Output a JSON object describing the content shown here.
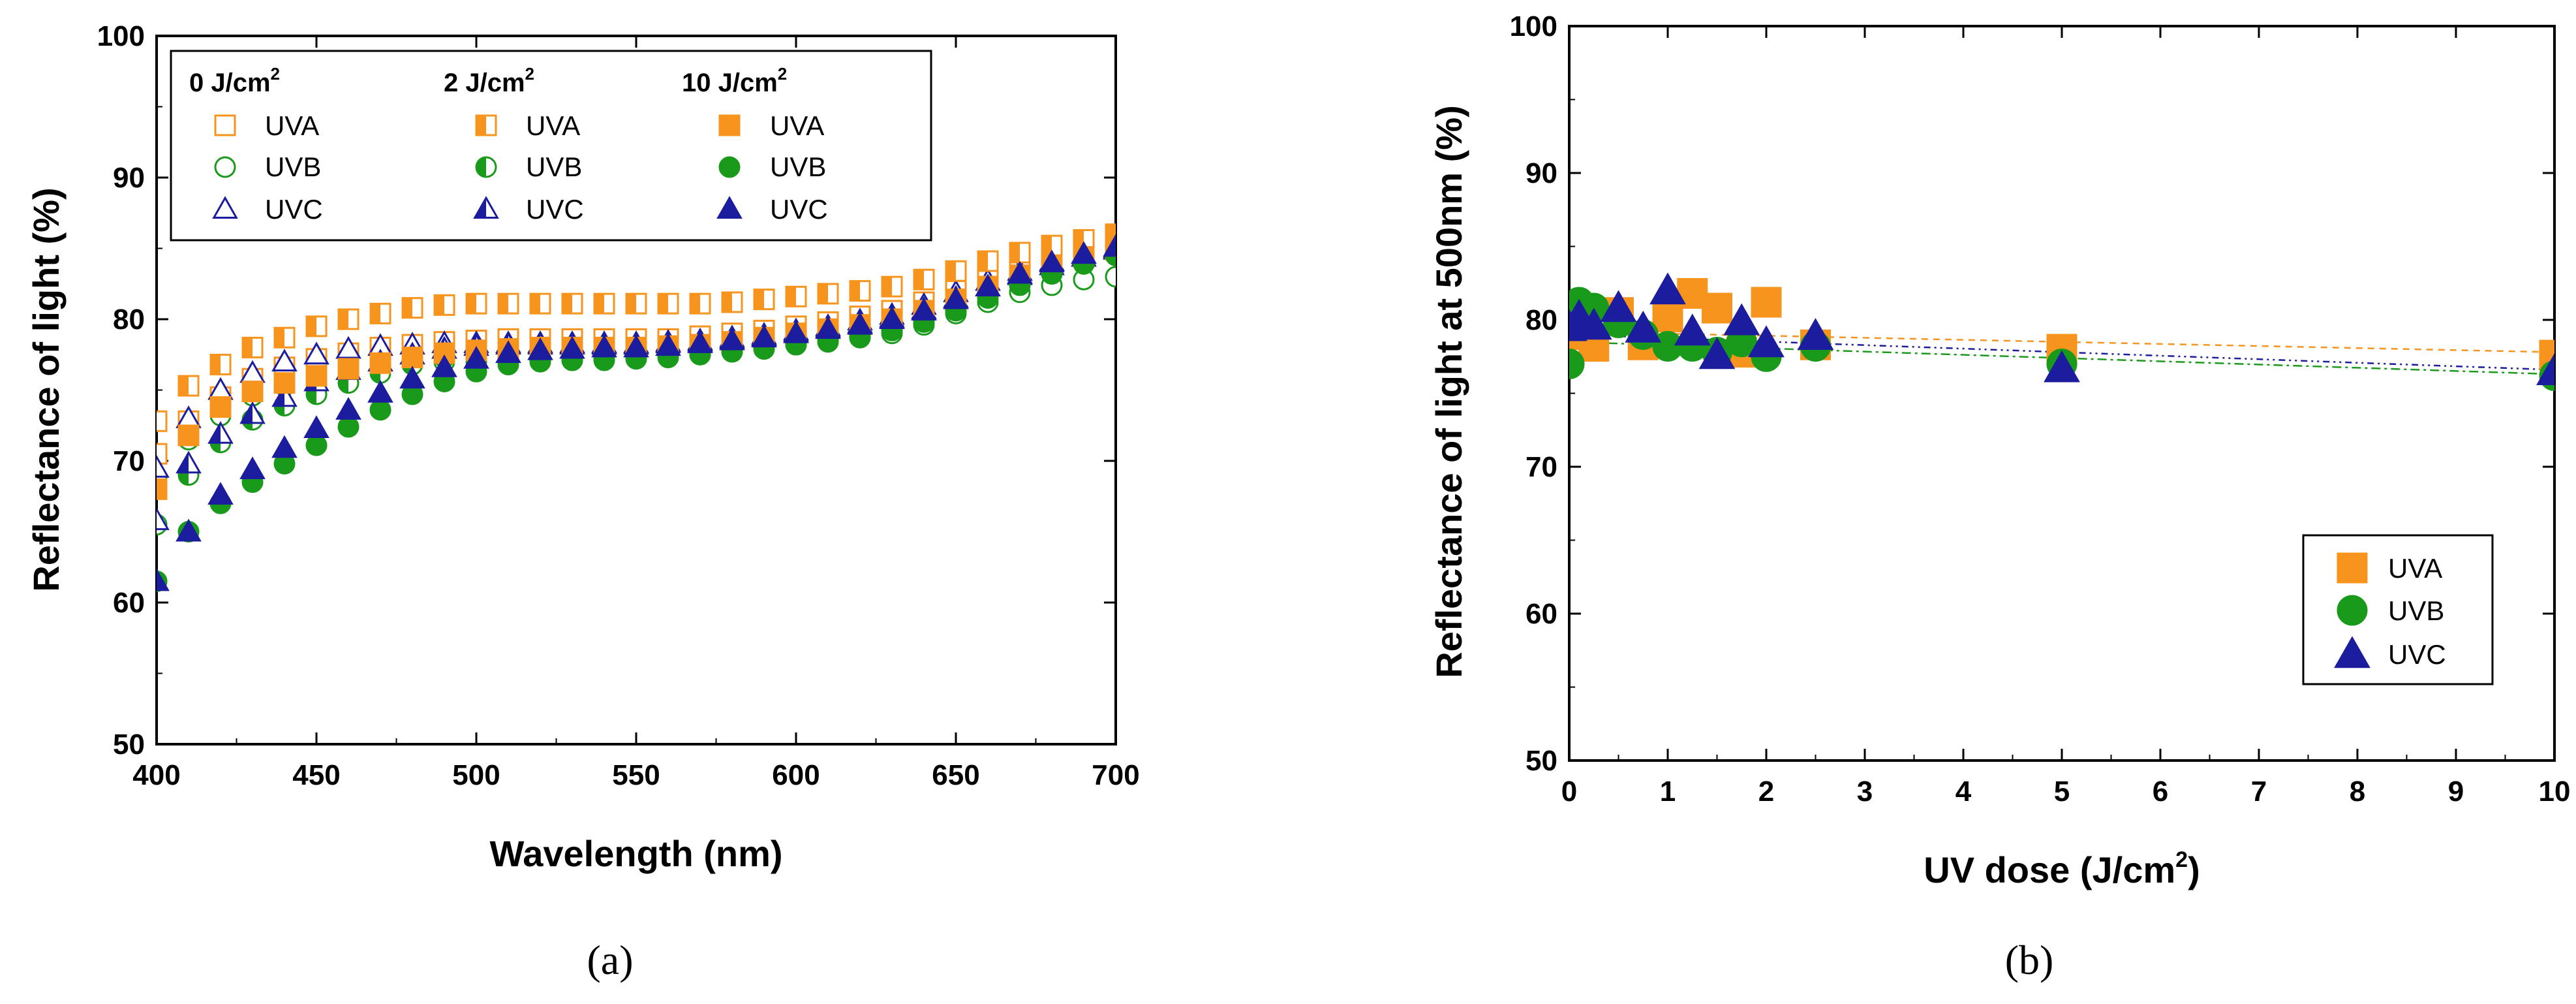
{
  "colors": {
    "UVA": "#f7941d",
    "UVB": "#1a9a1a",
    "UVC": "#1c1c9e",
    "axis": "#000000"
  },
  "chart_data": [
    {
      "type": "scatter",
      "panel_label": "(a)",
      "xlabel": "Wavelength (nm)",
      "ylabel": "Reflectance of light (%)",
      "xlim": [
        400,
        700
      ],
      "ylim": [
        50,
        100
      ],
      "xticks": [
        "400",
        "450",
        "500",
        "550",
        "600",
        "650",
        "700"
      ],
      "yticks": [
        "50",
        "60",
        "70",
        "80",
        "90",
        "100"
      ],
      "legend_position": "top-left",
      "legend_groups": [
        {
          "header": "0 J/cm",
          "sup": "2",
          "entries": [
            "UVA",
            "UVB",
            "UVC"
          ]
        },
        {
          "header": "2 J/cm",
          "sup": "2",
          "entries": [
            "UVA",
            "UVB",
            "UVC"
          ]
        },
        {
          "header": "10 J/cm",
          "sup": "2",
          "entries": [
            "UVA",
            "UVB",
            "UVC"
          ]
        }
      ],
      "x": [
        400,
        410,
        420,
        430,
        440,
        450,
        460,
        470,
        480,
        490,
        500,
        510,
        520,
        530,
        540,
        550,
        560,
        570,
        580,
        590,
        600,
        610,
        620,
        630,
        640,
        650,
        660,
        670,
        680,
        690,
        700
      ],
      "series": [
        {
          "name": "UVA 0 J/cm2",
          "uv": "UVA",
          "fill": "open",
          "values": [
            70.5,
            72.8,
            74.5,
            75.8,
            76.6,
            77.2,
            77.6,
            78.0,
            78.2,
            78.4,
            78.5,
            78.6,
            78.6,
            78.6,
            78.6,
            78.6,
            78.6,
            78.8,
            79.0,
            79.2,
            79.5,
            79.8,
            80.2,
            80.6,
            81.2,
            82.0,
            82.8,
            83.5,
            84.3,
            84.9,
            85.4
          ]
        },
        {
          "name": "UVB 0 J/cm2",
          "uv": "UVB",
          "fill": "open",
          "values": [
            68.8,
            71.5,
            73.2,
            74.6,
            75.3,
            75.8,
            76.3,
            76.6,
            76.8,
            77.0,
            77.0,
            77.1,
            77.1,
            77.1,
            77.1,
            77.2,
            77.3,
            77.5,
            77.7,
            78.0,
            78.2,
            78.4,
            78.7,
            79.0,
            79.6,
            80.4,
            81.2,
            81.9,
            82.4,
            82.8,
            83.0
          ]
        },
        {
          "name": "UVC 0 J/cm2",
          "uv": "UVC",
          "fill": "open",
          "values": [
            69.5,
            73.0,
            75.0,
            76.2,
            77.0,
            77.5,
            77.9,
            78.1,
            78.2,
            78.3,
            78.3,
            78.3,
            78.3,
            78.3,
            78.3,
            78.3,
            78.4,
            78.5,
            78.7,
            78.9,
            79.2,
            79.5,
            79.9,
            80.3,
            81.0,
            81.9,
            82.7,
            83.4,
            84.1,
            84.6,
            85.0
          ]
        },
        {
          "name": "UVA 2 J/cm2",
          "uv": "UVA",
          "fill": "half",
          "values": [
            72.8,
            75.3,
            76.8,
            78.0,
            78.7,
            79.5,
            80.0,
            80.4,
            80.8,
            81.0,
            81.1,
            81.1,
            81.1,
            81.1,
            81.1,
            81.1,
            81.1,
            81.1,
            81.2,
            81.4,
            81.6,
            81.8,
            82.0,
            82.3,
            82.8,
            83.4,
            84.1,
            84.7,
            85.2,
            85.6,
            86.0
          ]
        },
        {
          "name": "UVB 2 J/cm2",
          "uv": "UVB",
          "fill": "half",
          "values": [
            65.5,
            69.0,
            71.3,
            72.9,
            73.9,
            74.7,
            75.5,
            76.2,
            76.8,
            77.3,
            77.6,
            77.8,
            77.9,
            77.9,
            77.9,
            77.9,
            78.0,
            78.1,
            78.3,
            78.5,
            78.8,
            79.1,
            79.4,
            79.8,
            80.4,
            81.2,
            82.1,
            82.9,
            83.6,
            84.2,
            84.7
          ]
        },
        {
          "name": "UVC 2 J/cm2",
          "uv": "UVC",
          "fill": "half",
          "values": [
            65.8,
            69.8,
            71.9,
            73.3,
            74.5,
            75.6,
            76.4,
            77.0,
            77.5,
            77.9,
            78.1,
            78.2,
            78.2,
            78.2,
            78.2,
            78.2,
            78.3,
            78.4,
            78.6,
            78.8,
            79.1,
            79.4,
            79.7,
            80.1,
            80.7,
            81.5,
            82.3,
            83.1,
            83.8,
            84.4,
            84.9
          ]
        },
        {
          "name": "UVA 10 J/cm2",
          "uv": "UVA",
          "fill": "filled",
          "values": [
            68.0,
            71.8,
            73.8,
            74.9,
            75.5,
            76.0,
            76.5,
            76.9,
            77.3,
            77.6,
            77.8,
            77.9,
            78.0,
            78.0,
            78.0,
            78.0,
            78.1,
            78.2,
            78.4,
            78.7,
            79.0,
            79.3,
            79.6,
            80.0,
            80.6,
            81.4,
            82.3,
            83.1,
            83.8,
            84.4,
            84.9
          ]
        },
        {
          "name": "UVB 10 J/cm2",
          "uv": "UVB",
          "fill": "filled",
          "values": [
            61.5,
            65.0,
            67.0,
            68.5,
            69.8,
            71.1,
            72.4,
            73.6,
            74.7,
            75.6,
            76.3,
            76.8,
            77.0,
            77.1,
            77.2,
            77.3,
            77.4,
            77.5,
            77.7,
            77.9,
            78.2,
            78.5,
            78.8,
            79.2,
            79.8,
            80.6,
            81.5,
            82.4,
            83.2,
            83.9,
            84.5
          ]
        },
        {
          "name": "UVC 10 J/cm2",
          "uv": "UVC",
          "fill": "filled",
          "values": [
            61.5,
            65.0,
            67.6,
            69.4,
            70.9,
            72.3,
            73.6,
            74.8,
            75.8,
            76.6,
            77.2,
            77.6,
            77.8,
            77.9,
            78.0,
            78.0,
            78.1,
            78.3,
            78.5,
            78.7,
            79.0,
            79.3,
            79.6,
            80.0,
            80.6,
            81.4,
            82.3,
            83.2,
            84.0,
            84.6,
            85.1
          ]
        }
      ]
    },
    {
      "type": "scatter",
      "panel_label": "(b)",
      "xlabel": "UV dose (J/cm",
      "xlabel_sup": "2",
      "xlabel_end": ")",
      "ylabel": "Reflectance of light at 500nm (%)",
      "xlim": [
        0,
        10
      ],
      "ylim": [
        50,
        100
      ],
      "xticks": [
        "0",
        "1",
        "2",
        "3",
        "4",
        "5",
        "6",
        "7",
        "8",
        "9",
        "10"
      ],
      "yticks": [
        "50",
        "60",
        "70",
        "80",
        "90",
        "100"
      ],
      "legend_position": "bottom-right",
      "legend": [
        "UVA",
        "UVB",
        "UVC"
      ],
      "series": [
        {
          "name": "UVA",
          "uv": "UVA",
          "x": [
            0,
            0.1,
            0.25,
            0.5,
            0.75,
            1.0,
            1.25,
            1.5,
            1.75,
            2.0,
            2.5,
            5,
            10
          ],
          "values": [
            79.0,
            79.3,
            78.2,
            80.5,
            78.3,
            80.2,
            81.8,
            80.8,
            77.8,
            81.2,
            78.3,
            78.0,
            77.6
          ],
          "fit": [
            [
              0,
              79.2
            ],
            [
              10,
              77.8
            ]
          ]
        },
        {
          "name": "UVB",
          "uv": "UVB",
          "x": [
            0,
            0.1,
            0.25,
            0.5,
            0.75,
            1.0,
            1.25,
            1.5,
            1.75,
            2.0,
            2.5,
            5,
            10
          ],
          "values": [
            77.0,
            81.2,
            80.8,
            79.8,
            79.0,
            78.2,
            78.2,
            77.8,
            78.5,
            77.5,
            78.2,
            77.0,
            76.2
          ],
          "fit": [
            [
              0,
              78.5
            ],
            [
              10,
              76.3
            ]
          ]
        },
        {
          "name": "UVC",
          "uv": "UVC",
          "x": [
            0,
            0.1,
            0.25,
            0.5,
            0.75,
            1.0,
            1.25,
            1.5,
            1.75,
            2.0,
            2.5,
            5,
            10
          ],
          "values": [
            79.5,
            80.2,
            79.6,
            80.8,
            79.4,
            82.0,
            79.2,
            77.6,
            79.9,
            78.4,
            78.9,
            76.7,
            76.5
          ],
          "fit": [
            [
              0,
              79.0
            ],
            [
              10,
              76.6
            ]
          ]
        }
      ]
    }
  ]
}
